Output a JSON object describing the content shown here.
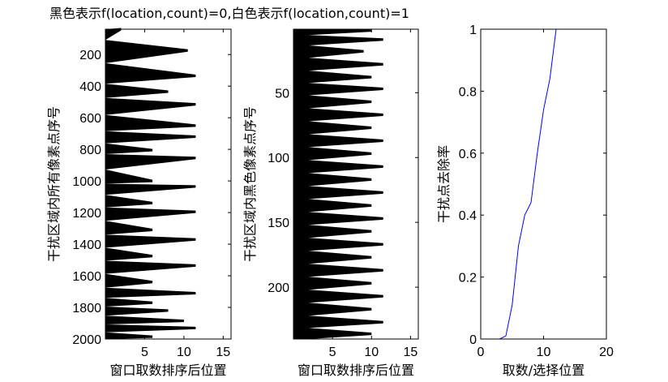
{
  "figure": {
    "title": "黑色表示f(location,count)=0,白色表示f(location,count)=1"
  },
  "chart_data": [
    {
      "type": "heatmap",
      "xlabel": "窗口取数排序后位置",
      "ylabel": "干扰区域内所有像素点序号",
      "xlim": [
        0,
        16
      ],
      "ylim": [
        2000,
        40
      ],
      "y_reversed": true,
      "xticks": [
        5,
        10,
        15
      ],
      "yticks": [
        200,
        400,
        600,
        800,
        1000,
        1200,
        1400,
        1600,
        1800,
        2000
      ],
      "fill_color": "#000000",
      "background_color": "#ffffff",
      "bands": [
        {
          "y": 40,
          "len": 2.0
        },
        {
          "y": 175,
          "len": 10.5
        },
        {
          "y": 335,
          "len": 11.5
        },
        {
          "y": 435,
          "len": 8.0
        },
        {
          "y": 515,
          "len": 11.5
        },
        {
          "y": 650,
          "len": 11.5
        },
        {
          "y": 720,
          "len": 11.5
        },
        {
          "y": 805,
          "len": 6.0
        },
        {
          "y": 855,
          "len": 11.5
        },
        {
          "y": 1000,
          "len": 6.0
        },
        {
          "y": 1035,
          "len": 11.5
        },
        {
          "y": 1140,
          "len": 6.0
        },
        {
          "y": 1195,
          "len": 11.5
        },
        {
          "y": 1310,
          "len": 6.0
        },
        {
          "y": 1370,
          "len": 11.5
        },
        {
          "y": 1475,
          "len": 6.0
        },
        {
          "y": 1535,
          "len": 11.5
        },
        {
          "y": 1640,
          "len": 6.0
        },
        {
          "y": 1710,
          "len": 11.5
        },
        {
          "y": 1770,
          "len": 6.0
        },
        {
          "y": 1820,
          "len": 8.0
        },
        {
          "y": 1885,
          "len": 10.0
        },
        {
          "y": 1930,
          "len": 11.5
        },
        {
          "y": 1985,
          "len": 6.0
        }
      ]
    },
    {
      "type": "heatmap",
      "xlabel": "窗口取数排序后位置",
      "ylabel": "干扰区域内黑色像素点序号",
      "xlim": [
        0,
        16
      ],
      "ylim": [
        240,
        1
      ],
      "y_reversed": true,
      "xticks": [
        5,
        10,
        15
      ],
      "yticks": [
        50,
        100,
        150,
        200
      ],
      "fill_color": "#000000",
      "background_color": "#ffffff",
      "base_len": 2.0,
      "bands": [
        {
          "y": 2,
          "len": 10
        },
        {
          "y": 9,
          "len": 11.5
        },
        {
          "y": 18,
          "len": 9
        },
        {
          "y": 28,
          "len": 11.5
        },
        {
          "y": 38,
          "len": 10
        },
        {
          "y": 47,
          "len": 11.5
        },
        {
          "y": 57,
          "len": 10
        },
        {
          "y": 67,
          "len": 11.5
        },
        {
          "y": 77,
          "len": 10
        },
        {
          "y": 87,
          "len": 11.5
        },
        {
          "y": 97,
          "len": 10
        },
        {
          "y": 107,
          "len": 11.5
        },
        {
          "y": 117,
          "len": 10
        },
        {
          "y": 127,
          "len": 11.5
        },
        {
          "y": 137,
          "len": 10
        },
        {
          "y": 147,
          "len": 11.5
        },
        {
          "y": 157,
          "len": 10
        },
        {
          "y": 167,
          "len": 11.5
        },
        {
          "y": 177,
          "len": 10
        },
        {
          "y": 187,
          "len": 11.5
        },
        {
          "y": 197,
          "len": 10
        },
        {
          "y": 207,
          "len": 11.5
        },
        {
          "y": 217,
          "len": 10
        },
        {
          "y": 227,
          "len": 11.5
        },
        {
          "y": 236,
          "len": 10
        }
      ]
    },
    {
      "type": "line",
      "xlabel": "取数/选择位置",
      "ylabel": "干扰点去除率",
      "xlim": [
        0,
        20
      ],
      "ylim": [
        0,
        1
      ],
      "xticks": [
        0,
        10,
        20
      ],
      "yticks": [
        0,
        0.2,
        0.4,
        0.6,
        0.8,
        1
      ],
      "series": [
        {
          "color": "#0000ff",
          "x": [
            2,
            3,
            4,
            5,
            6,
            7,
            8,
            9,
            10,
            11,
            12,
            13,
            14,
            15
          ],
          "y": [
            0.0,
            0.0,
            0.01,
            0.11,
            0.3,
            0.4,
            0.44,
            0.6,
            0.74,
            0.84,
            1.0,
            1.0,
            1.0,
            1.0
          ]
        }
      ]
    }
  ]
}
